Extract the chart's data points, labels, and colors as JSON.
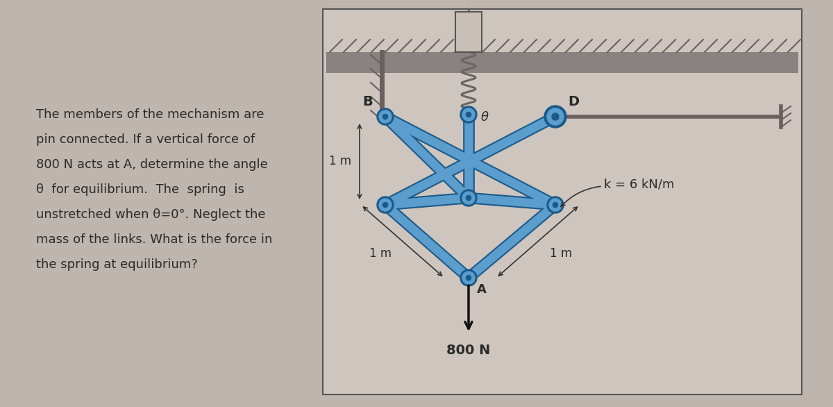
{
  "bg_color": "#bdb5ae",
  "diagram_bg": "#cdc5be",
  "box_border": "#555555",
  "text_color": "#2a2a2a",
  "text_left_lines": [
    "The members of the mechanism are",
    "pin connected. If a vertical force of",
    "800 N acts at A, determine the angle",
    "θ  for equilibrium.  The  spring  is",
    "unstretched when θ=0°. Neglect the",
    "mass of the links. What is the force in",
    "the spring at equilibrium?"
  ],
  "link_color": "#5b9dcc",
  "link_edge": "#1a5a8a",
  "wall_hatch_color": "#7a7070",
  "wall_line_color": "#6a6060",
  "spring_color": "#666666",
  "label_B": "B",
  "label_D": "D",
  "label_theta": "θ",
  "label_k": "k = 6 kN/m",
  "label_1m_upper": "1 m",
  "label_1m_lower_left": "1 m",
  "label_1m_lower_right": "1 m",
  "label_A": "A",
  "label_force": "800 N",
  "force_color": "#111111"
}
